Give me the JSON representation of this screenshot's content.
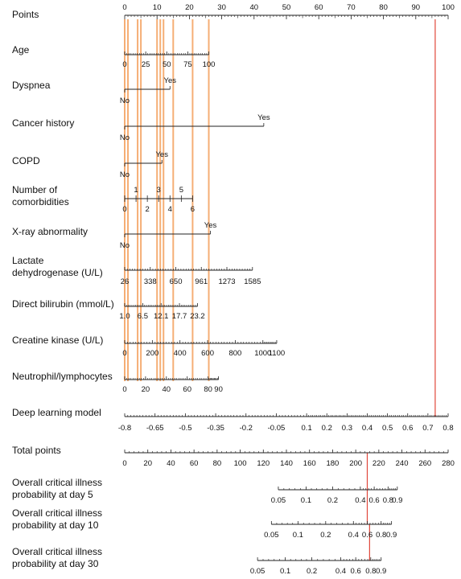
{
  "chart_data": {
    "type": "nomogram",
    "points_axis": {
      "name": "Points",
      "min": 0,
      "max": 100,
      "ticks": [
        0,
        10,
        20,
        30,
        40,
        50,
        60,
        70,
        80,
        90,
        100
      ]
    },
    "variables": [
      {
        "id": "age",
        "label": [
          "Age"
        ],
        "kind": "numeric",
        "min": 0,
        "max": 100,
        "points_at_max": 26,
        "ticks": [
          0,
          25,
          50,
          75,
          100
        ],
        "tick_labels": [
          "0",
          "25",
          "50",
          "75",
          "100"
        ]
      },
      {
        "id": "dyspnea",
        "label": [
          "Dyspnea"
        ],
        "kind": "binary",
        "levels": [
          {
            "label": "No",
            "points": 0
          },
          {
            "label": "Yes",
            "points": 14
          }
        ]
      },
      {
        "id": "cancer",
        "label": [
          "Cancer history"
        ],
        "kind": "binary",
        "levels": [
          {
            "label": "No",
            "points": 0
          },
          {
            "label": "Yes",
            "points": 43
          }
        ]
      },
      {
        "id": "copd",
        "label": [
          "COPD"
        ],
        "kind": "binary",
        "levels": [
          {
            "label": "No",
            "points": 0
          },
          {
            "label": "Yes",
            "points": 11.5
          }
        ]
      },
      {
        "id": "comorb",
        "label": [
          "Number of",
          "comorbidities"
        ],
        "kind": "numeric",
        "min": 0,
        "max": 6,
        "points_at_max": 21,
        "ticks_above": [
          1,
          3,
          5
        ],
        "ticks_below": [
          0,
          2,
          4,
          6
        ]
      },
      {
        "id": "xray",
        "label": [
          "X-ray abnormality"
        ],
        "kind": "binary",
        "levels": [
          {
            "label": "No",
            "points": 0
          },
          {
            "label": "Yes",
            "points": 26.5
          }
        ]
      },
      {
        "id": "ldh",
        "label": [
          "Lactate",
          "dehydrogenase (U/L)"
        ],
        "kind": "numeric",
        "min": 26,
        "max": 1585,
        "points_at_max": 39.5,
        "ticks": [
          26,
          338,
          650,
          961,
          1273,
          1585
        ],
        "tick_labels": [
          "26",
          "338",
          "650",
          "961",
          "1273",
          "1585"
        ]
      },
      {
        "id": "bili",
        "label": [
          "Direct bilirubin (mmol/L)"
        ],
        "kind": "numeric",
        "min": 1.0,
        "max": 23.2,
        "points_at_max": 22.5,
        "ticks": [
          1.0,
          6.5,
          12.1,
          17.7,
          23.2
        ],
        "tick_labels": [
          "1.0",
          "6.5",
          "12.1",
          "17.7",
          "23.2"
        ]
      },
      {
        "id": "ck",
        "label": [
          "Creatine kinase (U/L)"
        ],
        "kind": "numeric",
        "min": 0,
        "max": 1100,
        "points_at_max": 47,
        "ticks": [
          0,
          200,
          400,
          600,
          800,
          1000,
          1100
        ],
        "tick_labels": [
          "0",
          "200",
          "400",
          "600",
          "800",
          "1000",
          "1100"
        ]
      },
      {
        "id": "nlr",
        "label": [
          "Neutrophil/lymphocytes"
        ],
        "kind": "numeric",
        "min": 0,
        "max": 90,
        "points_at_max": 29,
        "ticks": [
          0,
          20,
          40,
          60,
          80,
          90
        ],
        "tick_labels": [
          "0",
          "20",
          "40",
          "60",
          "80",
          "90"
        ]
      },
      {
        "id": "dl",
        "label": [
          "Deep learning model"
        ],
        "kind": "numeric",
        "min": -0.8,
        "max": 0.8,
        "points_at_max": 100,
        "ticks": [
          -0.8,
          -0.65,
          -0.5,
          -0.35,
          -0.2,
          -0.05,
          0.1,
          0.2,
          0.3,
          0.4,
          0.5,
          0.6,
          0.7,
          0.8
        ],
        "tick_labels": [
          "-0.8",
          "-0.65",
          "-0.5",
          "-0.35",
          "-0.2",
          "-0.05",
          "0.1",
          "0.2",
          "0.3",
          "0.4",
          "0.5",
          "0.6",
          "0.7",
          "0.8"
        ]
      }
    ],
    "total_points_axis": {
      "name": "Total points",
      "min": 0,
      "max": 280,
      "ticks": [
        0,
        20,
        40,
        60,
        80,
        100,
        120,
        140,
        160,
        180,
        200,
        220,
        240,
        260,
        280
      ],
      "tick_labels": [
        "0",
        "20",
        "40",
        "60",
        "80",
        "100",
        "120",
        "140",
        "160",
        "180",
        "200",
        "220",
        "240",
        "260",
        "280"
      ]
    },
    "probability_axes": [
      {
        "label": [
          "Overall critical illness",
          "probability at day 5"
        ],
        "ticks": [
          0.05,
          0.1,
          0.2,
          0.4,
          0.6,
          0.8,
          0.9
        ],
        "tick_labels": [
          "0.05",
          "0.1",
          "0.2",
          "0.4",
          "0.6",
          "0.8",
          "0.9"
        ],
        "total_points_at_ticks": [
          133,
          157,
          180,
          204,
          216,
          228,
          236
        ]
      },
      {
        "label": [
          "Overall critical illness",
          "probability at day 10"
        ],
        "ticks": [
          0.05,
          0.1,
          0.2,
          0.4,
          0.6,
          0.8,
          0.9
        ],
        "tick_labels": [
          "0.05",
          "0.1",
          "0.2",
          "0.4",
          "0.6",
          "0.8",
          "0.9"
        ],
        "total_points_at_ticks": [
          127,
          150,
          174,
          198,
          210,
          222,
          231
        ]
      },
      {
        "label": [
          "Overall critical illness",
          "probability at day 30"
        ],
        "ticks": [
          0.05,
          0.1,
          0.2,
          0.4,
          0.6,
          0.8,
          0.9
        ],
        "tick_labels": [
          "0.05",
          "0.1",
          "0.2",
          "0.4",
          "0.6",
          "0.8",
          "0.9"
        ],
        "total_points_at_ticks": [
          115,
          139,
          162,
          187,
          200,
          213,
          222
        ]
      }
    ],
    "example_case": {
      "highlight_color_variables": "#f4a15d",
      "highlight_color_result": "#e0473b",
      "variable_points": [
        0,
        1,
        4,
        5,
        10,
        11,
        12,
        15,
        21,
        26
      ],
      "deep_learning_points": 96,
      "total_points": 210,
      "total_points_right": 212
    }
  }
}
